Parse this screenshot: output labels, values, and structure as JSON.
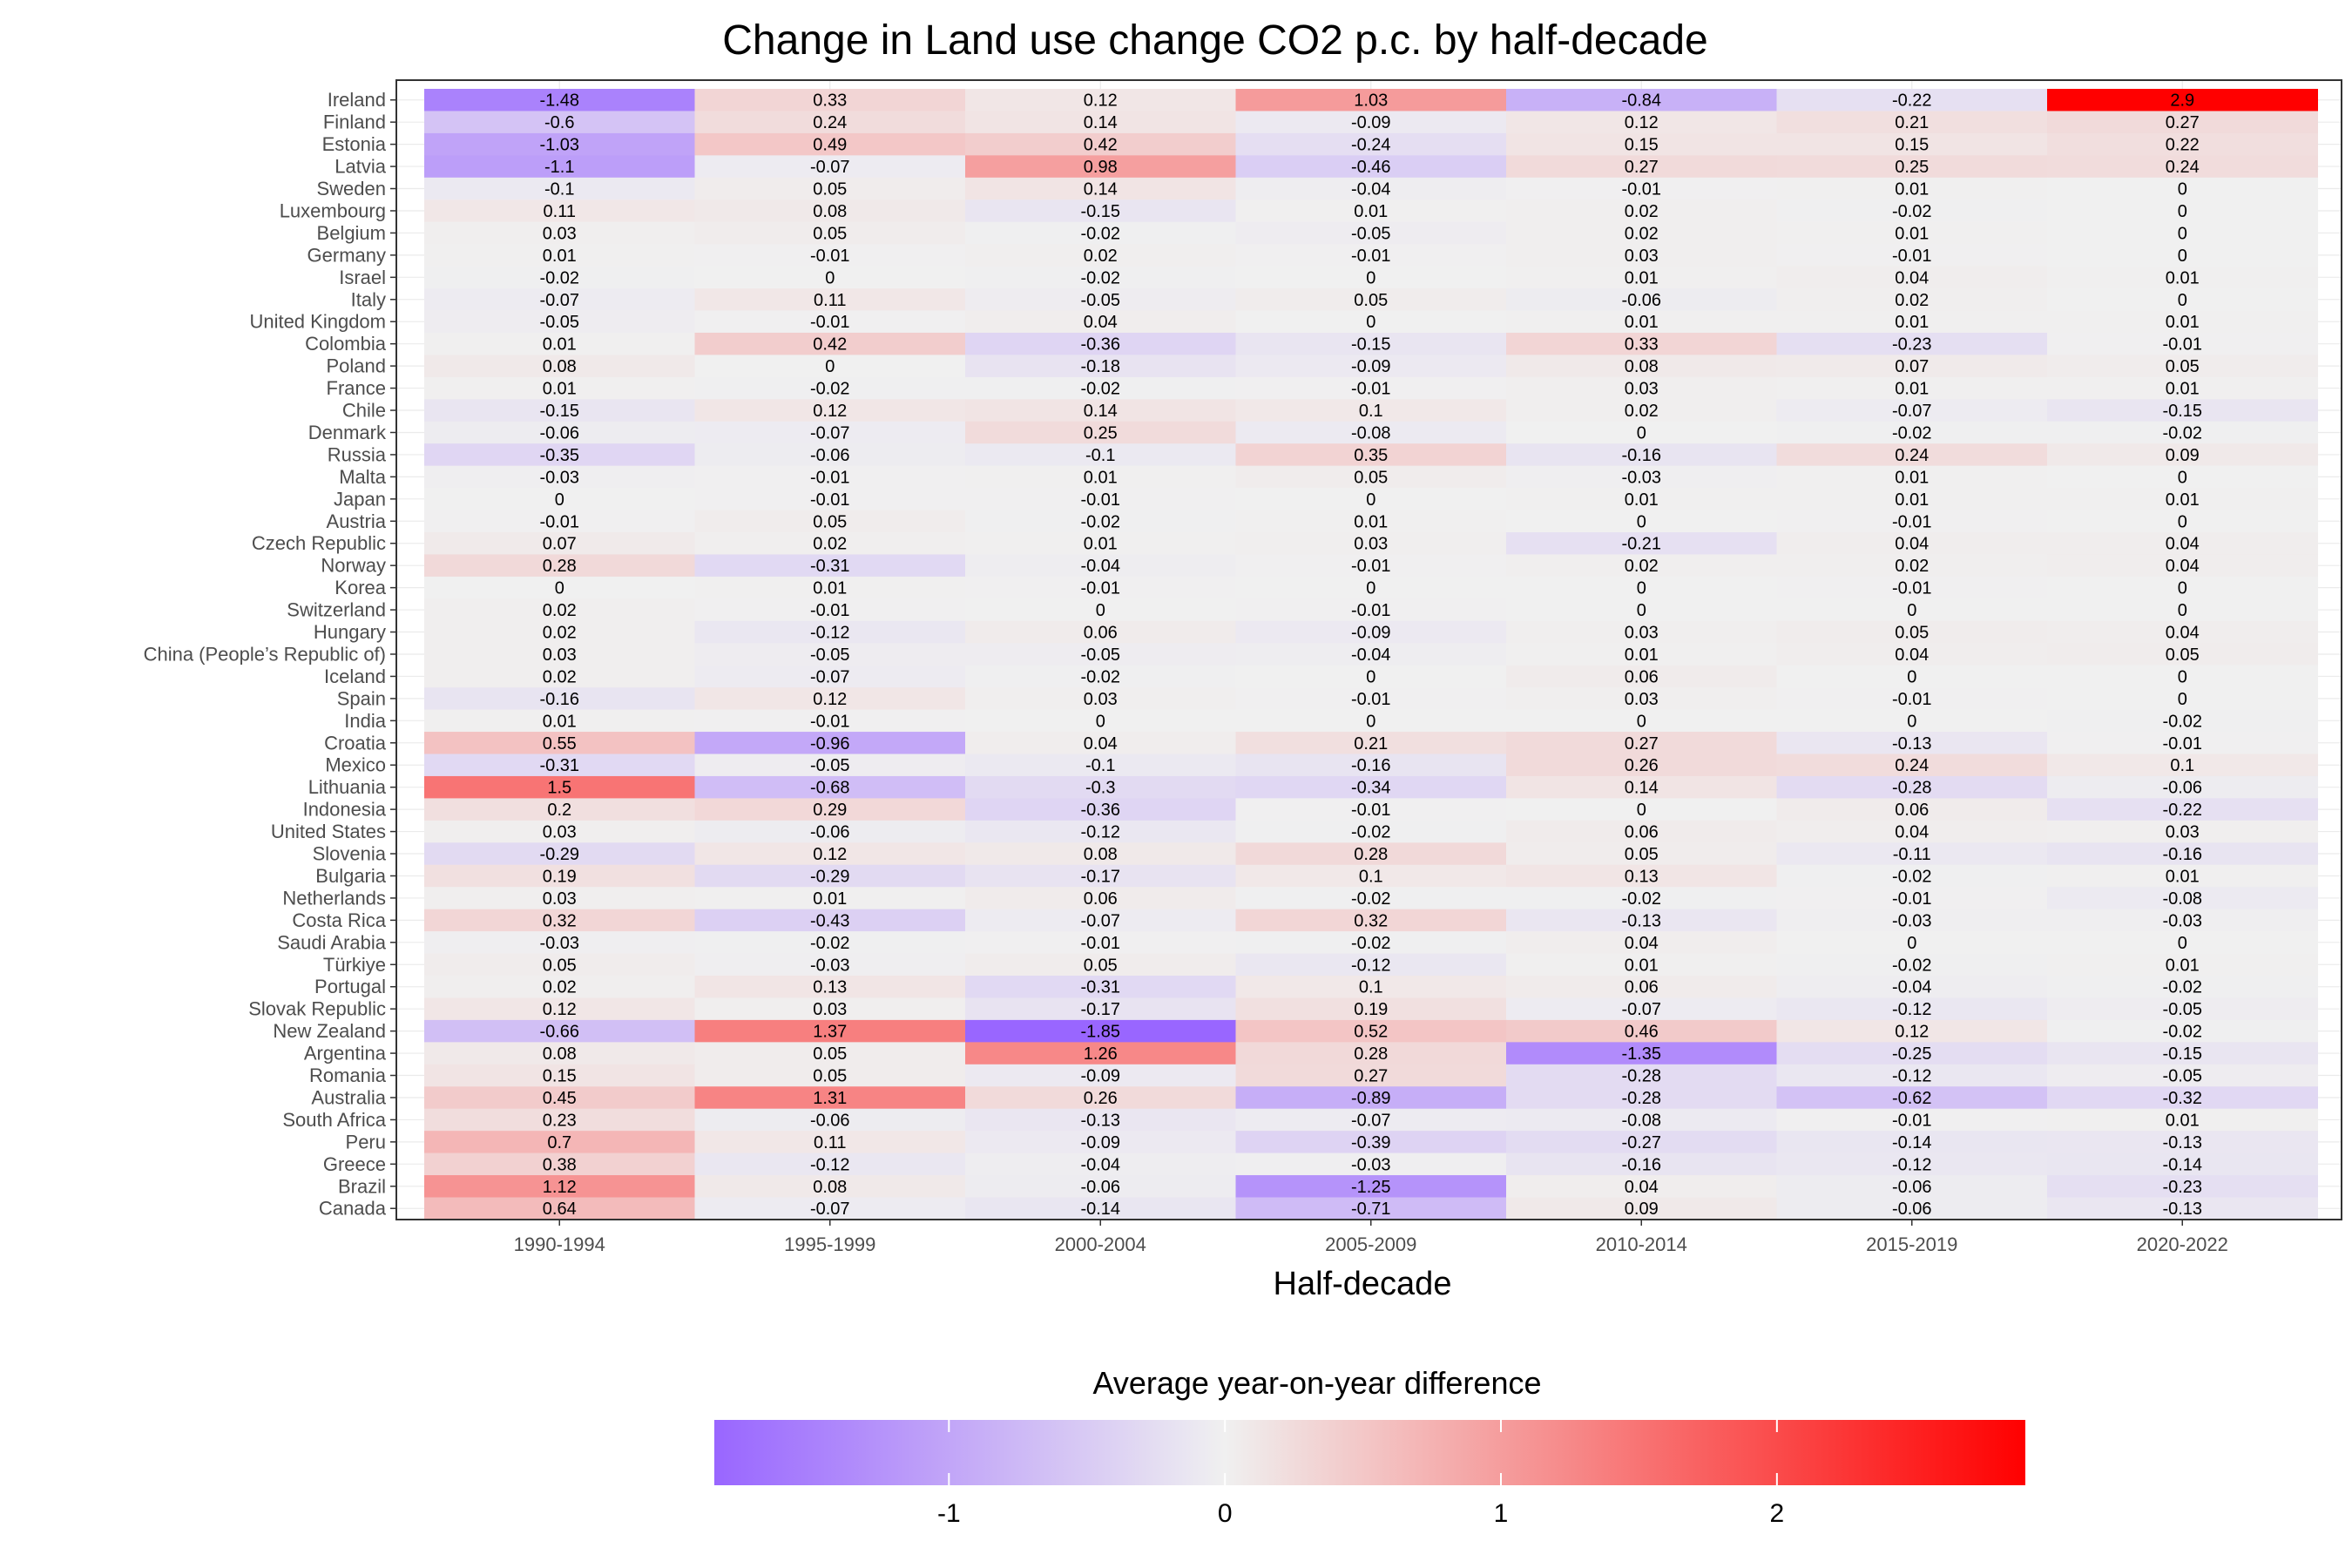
{
  "chart_data": {
    "type": "heatmap",
    "title": "Change in Land use change CO2 p.c. by half-decade",
    "xlabel": "Half-decade",
    "ylabel": "",
    "x": [
      "1990-1994",
      "1995-1999",
      "2000-2004",
      "2005-2009",
      "2010-2014",
      "2015-2019",
      "2020-2022"
    ],
    "y": [
      "Ireland",
      "Finland",
      "Estonia",
      "Latvia",
      "Sweden",
      "Luxembourg",
      "Belgium",
      "Germany",
      "Israel",
      "Italy",
      "United Kingdom",
      "Colombia",
      "Poland",
      "France",
      "Chile",
      "Denmark",
      "Russia",
      "Malta",
      "Japan",
      "Austria",
      "Czech Republic",
      "Norway",
      "Korea",
      "Switzerland",
      "Hungary",
      "China (People’s Republic of)",
      "Iceland",
      "Spain",
      "India",
      "Croatia",
      "Mexico",
      "Lithuania",
      "Indonesia",
      "United States",
      "Slovenia",
      "Bulgaria",
      "Netherlands",
      "Costa Rica",
      "Saudi Arabia",
      "Türkiye",
      "Portugal",
      "Slovak Republic",
      "New Zealand",
      "Argentina",
      "Romania",
      "Australia",
      "South Africa",
      "Peru",
      "Greece",
      "Brazil",
      "Canada"
    ],
    "values": [
      [
        -1.48,
        0.33,
        0.12,
        1.03,
        -0.84,
        -0.22,
        2.9
      ],
      [
        -0.6,
        0.24,
        0.14,
        -0.09,
        0.12,
        0.21,
        0.27
      ],
      [
        -1.03,
        0.49,
        0.42,
        -0.24,
        0.15,
        0.15,
        0.22
      ],
      [
        -1.1,
        -0.07,
        0.98,
        -0.46,
        0.27,
        0.25,
        0.24
      ],
      [
        -0.1,
        0.05,
        0.14,
        -0.04,
        -0.01,
        0.01,
        0
      ],
      [
        0.11,
        0.08,
        -0.15,
        0.01,
        0.02,
        -0.02,
        0
      ],
      [
        0.03,
        0.05,
        -0.02,
        -0.05,
        0.02,
        0.01,
        0
      ],
      [
        0.01,
        -0.01,
        0.02,
        -0.01,
        0.03,
        -0.01,
        0
      ],
      [
        -0.02,
        0,
        -0.02,
        0,
        0.01,
        0.04,
        0.01
      ],
      [
        -0.07,
        0.11,
        -0.05,
        0.05,
        -0.06,
        0.02,
        0
      ],
      [
        -0.05,
        -0.01,
        0.04,
        0,
        0.01,
        0.01,
        0.01
      ],
      [
        0.01,
        0.42,
        -0.36,
        -0.15,
        0.33,
        -0.23,
        -0.01
      ],
      [
        0.08,
        0,
        -0.18,
        -0.09,
        0.08,
        0.07,
        0.05
      ],
      [
        0.01,
        -0.02,
        -0.02,
        -0.01,
        0.03,
        0.01,
        0.01
      ],
      [
        -0.15,
        0.12,
        0.14,
        0.1,
        0.02,
        -0.07,
        -0.15
      ],
      [
        -0.06,
        -0.07,
        0.25,
        -0.08,
        0,
        -0.02,
        -0.02
      ],
      [
        -0.35,
        -0.06,
        -0.1,
        0.35,
        -0.16,
        0.24,
        0.09
      ],
      [
        -0.03,
        -0.01,
        0.01,
        0.05,
        -0.03,
        0.01,
        0
      ],
      [
        0,
        -0.01,
        -0.01,
        0,
        0.01,
        0.01,
        0.01
      ],
      [
        -0.01,
        0.05,
        -0.02,
        0.01,
        0,
        -0.01,
        0
      ],
      [
        0.07,
        0.02,
        0.01,
        0.03,
        -0.21,
        0.04,
        0.04
      ],
      [
        0.28,
        -0.31,
        -0.04,
        -0.01,
        0.02,
        0.02,
        0.04
      ],
      [
        0,
        0.01,
        -0.01,
        0,
        0,
        -0.01,
        0
      ],
      [
        0.02,
        -0.01,
        0,
        -0.01,
        0,
        0,
        0
      ],
      [
        0.02,
        -0.12,
        0.06,
        -0.09,
        0.03,
        0.05,
        0.04
      ],
      [
        0.03,
        -0.05,
        -0.05,
        -0.04,
        0.01,
        0.04,
        0.05
      ],
      [
        0.02,
        -0.07,
        -0.02,
        0,
        0.06,
        0,
        0
      ],
      [
        -0.16,
        0.12,
        0.03,
        -0.01,
        0.03,
        -0.01,
        0
      ],
      [
        0.01,
        -0.01,
        0,
        0,
        0,
        0,
        -0.02
      ],
      [
        0.55,
        -0.96,
        0.04,
        0.21,
        0.27,
        -0.13,
        -0.01
      ],
      [
        -0.31,
        -0.05,
        -0.1,
        -0.16,
        0.26,
        0.24,
        0.1
      ],
      [
        1.5,
        -0.68,
        -0.3,
        -0.34,
        0.14,
        -0.28,
        -0.06
      ],
      [
        0.2,
        0.29,
        -0.36,
        -0.01,
        0,
        0.06,
        -0.22
      ],
      [
        0.03,
        -0.06,
        -0.12,
        -0.02,
        0.06,
        0.04,
        0.03
      ],
      [
        -0.29,
        0.12,
        0.08,
        0.28,
        0.05,
        -0.11,
        -0.16
      ],
      [
        0.19,
        -0.29,
        -0.17,
        0.1,
        0.13,
        -0.02,
        0.01
      ],
      [
        0.03,
        0.01,
        0.06,
        -0.02,
        -0.02,
        -0.01,
        -0.08
      ],
      [
        0.32,
        -0.43,
        -0.07,
        0.32,
        -0.13,
        -0.03,
        -0.03
      ],
      [
        -0.03,
        -0.02,
        -0.01,
        -0.02,
        0.04,
        0,
        0
      ],
      [
        0.05,
        -0.03,
        0.05,
        -0.12,
        0.01,
        -0.02,
        0.01
      ],
      [
        0.02,
        0.13,
        -0.31,
        0.1,
        0.06,
        -0.04,
        -0.02
      ],
      [
        0.12,
        0.03,
        -0.17,
        0.19,
        -0.07,
        -0.12,
        -0.05
      ],
      [
        -0.66,
        1.37,
        -1.85,
        0.52,
        0.46,
        0.12,
        -0.02
      ],
      [
        0.08,
        0.05,
        1.26,
        0.28,
        -1.35,
        -0.25,
        -0.15
      ],
      [
        0.15,
        0.05,
        -0.09,
        0.27,
        -0.28,
        -0.12,
        -0.05
      ],
      [
        0.45,
        1.31,
        0.26,
        -0.89,
        -0.28,
        -0.62,
        -0.32
      ],
      [
        0.23,
        -0.06,
        -0.13,
        -0.07,
        -0.08,
        -0.01,
        0.01
      ],
      [
        0.7,
        0.11,
        -0.09,
        -0.39,
        -0.27,
        -0.14,
        -0.13
      ],
      [
        0.38,
        -0.12,
        -0.04,
        -0.03,
        -0.16,
        -0.12,
        -0.14
      ],
      [
        1.12,
        0.08,
        -0.06,
        -1.25,
        0.04,
        -0.06,
        -0.23
      ],
      [
        0.64,
        -0.07,
        -0.14,
        -0.71,
        0.09,
        -0.06,
        -0.13
      ]
    ],
    "color_scale": {
      "low_color": "#9966ff",
      "mid_color": "#f0f0f0",
      "high_color": "#ff0000",
      "min": -1.85,
      "mid": 0,
      "max": 2.9
    },
    "legend": {
      "title": "Average year-on-year difference",
      "ticks": [
        -1,
        0,
        1,
        2
      ],
      "placement": "bottom"
    },
    "grid": true
  }
}
